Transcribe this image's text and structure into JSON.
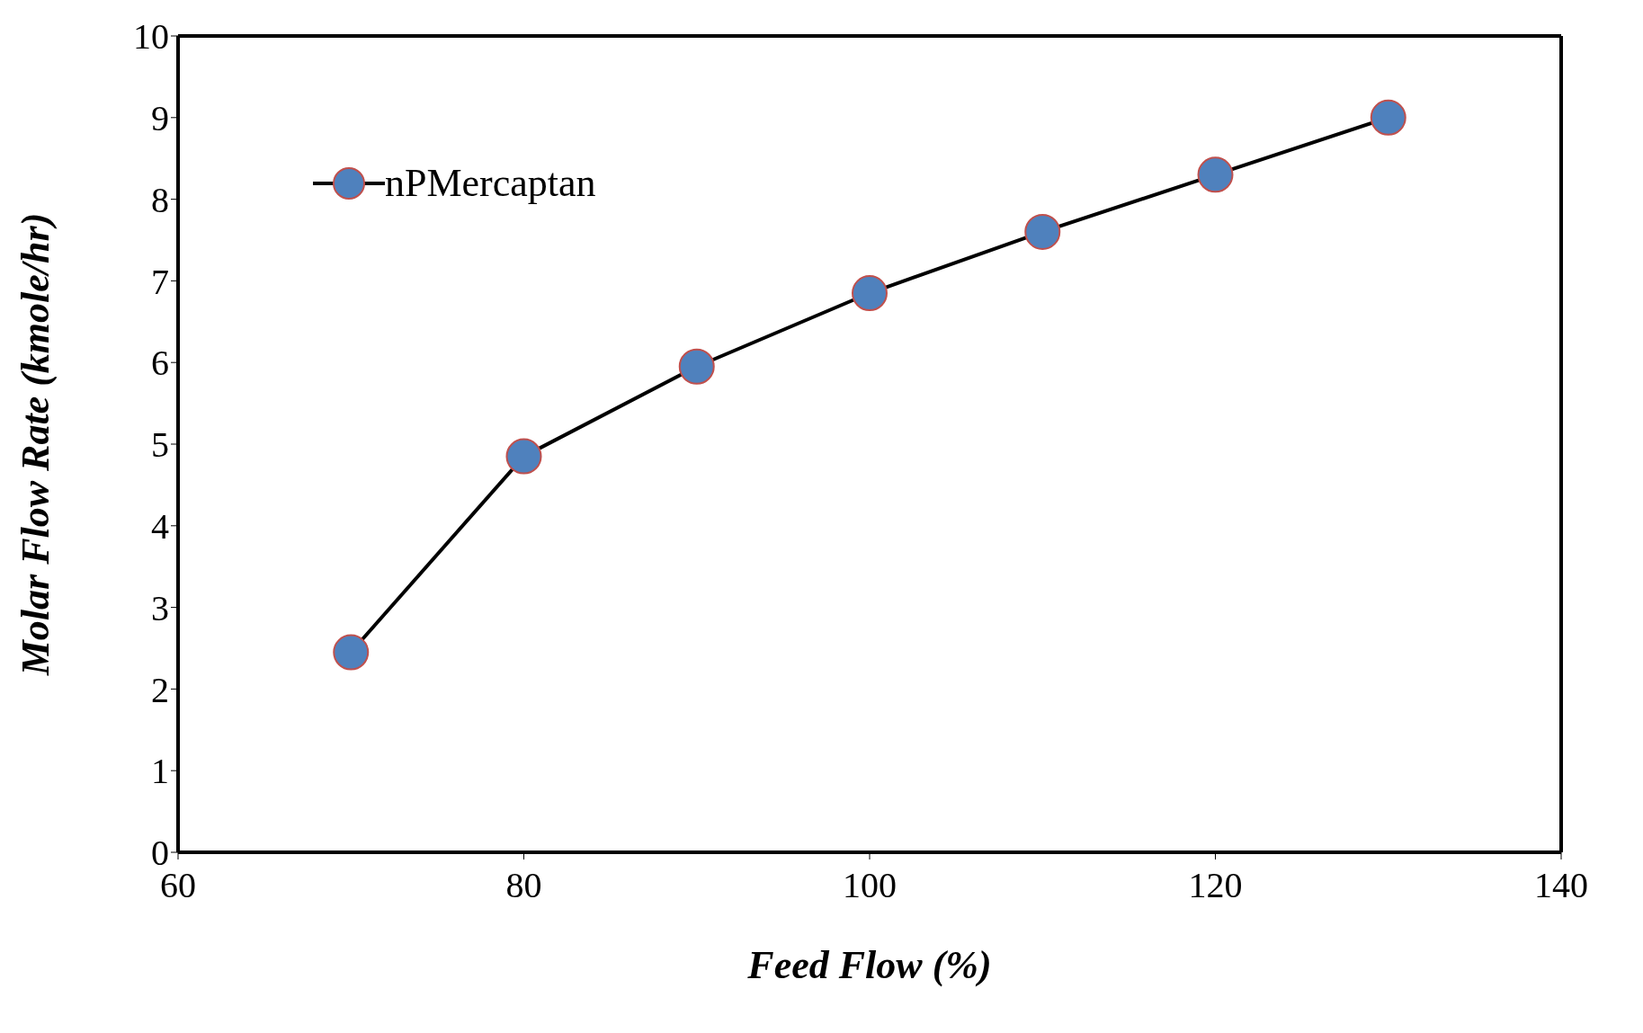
{
  "chart_data": {
    "type": "line",
    "xlabel": "Feed Flow (%)",
    "ylabel": "Molar Flow Rate (kmole/hr)",
    "x": [
      70,
      80,
      90,
      100,
      110,
      120,
      130
    ],
    "series": [
      {
        "name": "nPMercaptan",
        "color": "#4f81bd",
        "values": [
          2.45,
          4.85,
          5.95,
          6.85,
          7.6,
          8.3,
          9.0
        ]
      }
    ],
    "xlim": [
      60,
      140
    ],
    "xticks": [
      60,
      80,
      100,
      120,
      140
    ],
    "ylim": [
      0,
      10
    ],
    "yticks": [
      0,
      1,
      2,
      3,
      4,
      5,
      6,
      7,
      8,
      9,
      10
    ],
    "legend": "top left",
    "marker": "circle",
    "line_style": "solid"
  }
}
